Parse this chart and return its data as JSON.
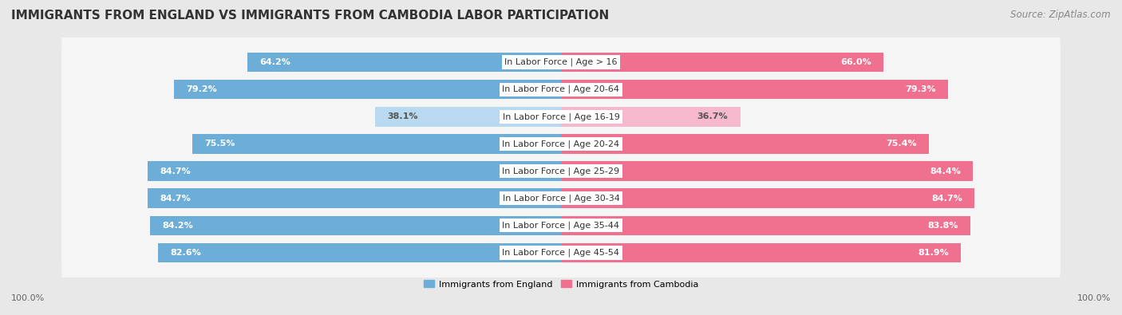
{
  "title": "IMMIGRANTS FROM ENGLAND VS IMMIGRANTS FROM CAMBODIA LABOR PARTICIPATION",
  "source": "Source: ZipAtlas.com",
  "categories": [
    "In Labor Force | Age > 16",
    "In Labor Force | Age 20-64",
    "In Labor Force | Age 16-19",
    "In Labor Force | Age 20-24",
    "In Labor Force | Age 25-29",
    "In Labor Force | Age 30-34",
    "In Labor Force | Age 35-44",
    "In Labor Force | Age 45-54"
  ],
  "england_values": [
    64.2,
    79.2,
    38.1,
    75.5,
    84.7,
    84.7,
    84.2,
    82.6
  ],
  "cambodia_values": [
    66.0,
    79.3,
    36.7,
    75.4,
    84.4,
    84.7,
    83.8,
    81.9
  ],
  "england_color": "#6daed9",
  "england_color_light": "#b8d9ef",
  "cambodia_color": "#f07090",
  "cambodia_color_light": "#f5b8cc",
  "background_color": "#e8e8e8",
  "row_bg_color": "#f5f5f5",
  "max_value": 100.0,
  "legend_england": "Immigrants from England",
  "legend_cambodia": "Immigrants from Cambodia",
  "title_fontsize": 11,
  "source_fontsize": 8.5,
  "label_fontsize": 8,
  "value_fontsize": 8,
  "bottom_label": "100.0%"
}
